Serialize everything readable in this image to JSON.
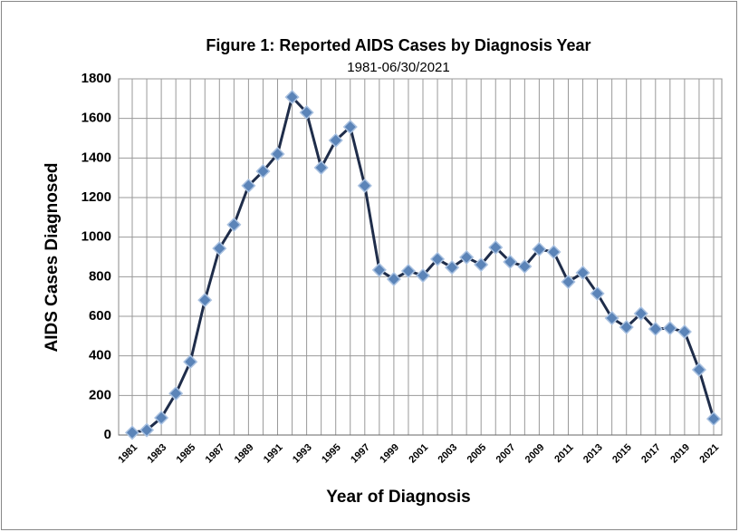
{
  "chart_data": {
    "type": "line",
    "title": "Figure 1: Reported AIDS Cases by Diagnosis Year",
    "subtitle": "1981-06/30/2021",
    "x_label": "Year of Diagnosis",
    "y_label": "AIDS Cases Diagnosed",
    "categories": [
      "1981",
      null,
      "1983",
      null,
      "1985",
      null,
      "1987",
      null,
      "1989",
      null,
      "1991",
      null,
      "1993",
      null,
      "1995",
      null,
      "1997",
      null,
      "1999",
      null,
      "2001",
      null,
      "2003",
      null,
      "2005",
      null,
      "2007",
      null,
      "2009",
      null,
      "2011",
      null,
      "2013",
      null,
      "2015",
      null,
      "2017",
      null,
      "2019",
      null,
      "2021"
    ],
    "series": [
      {
        "name": "AIDS Cases",
        "color": "#1f2d4a",
        "marker_color": "#5b84b8",
        "values": [
          12,
          25,
          87,
          210,
          370,
          682,
          943,
          1063,
          1260,
          1333,
          1420,
          1708,
          1630,
          1351,
          1489,
          1557,
          1260,
          834,
          788,
          829,
          806,
          889,
          847,
          898,
          861,
          948,
          875,
          852,
          939,
          925,
          774,
          820,
          715,
          591,
          545,
          614,
          536,
          540,
          522,
          330,
          82
        ]
      }
    ],
    "ylim": [
      0,
      1800
    ],
    "yticks": [
      0,
      200,
      400,
      600,
      800,
      1000,
      1200,
      1400,
      1600,
      1800
    ],
    "grid": true
  }
}
